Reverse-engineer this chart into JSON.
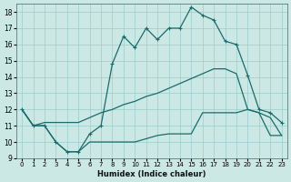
{
  "xlabel": "Humidex (Indice chaleur)",
  "bg_color": "#cce8e4",
  "grid_color": "#99cccc",
  "line_color": "#1a6b6b",
  "xlim": [
    -0.5,
    23.5
  ],
  "ylim": [
    9,
    18.5
  ],
  "yticks": [
    9,
    10,
    11,
    12,
    13,
    14,
    15,
    16,
    17,
    18
  ],
  "xticks": [
    0,
    1,
    2,
    3,
    4,
    5,
    6,
    7,
    8,
    9,
    10,
    11,
    12,
    13,
    14,
    15,
    16,
    17,
    18,
    19,
    20,
    21,
    22,
    23
  ],
  "line_main_x": [
    0,
    1,
    2,
    3,
    4,
    5,
    6,
    7,
    8,
    9,
    10,
    11,
    12,
    13,
    14,
    15,
    16,
    17,
    18,
    19,
    20,
    21,
    22,
    23
  ],
  "line_main_y": [
    12.0,
    11.0,
    11.0,
    10.0,
    9.4,
    9.4,
    10.5,
    11.0,
    14.8,
    16.5,
    15.8,
    17.0,
    16.3,
    17.0,
    17.0,
    18.3,
    17.8,
    17.5,
    16.2,
    16.0,
    14.1,
    12.0,
    11.8,
    11.2
  ],
  "line_upper_x": [
    0,
    1,
    2,
    3,
    4,
    5,
    6,
    7,
    8,
    9,
    10,
    11,
    12,
    13,
    14,
    15,
    16,
    17,
    18,
    19,
    20,
    21,
    22,
    23
  ],
  "line_upper_y": [
    12.0,
    11.0,
    11.2,
    11.2,
    11.2,
    11.2,
    11.5,
    11.8,
    12.0,
    12.3,
    12.5,
    12.8,
    13.0,
    13.3,
    13.6,
    13.9,
    14.2,
    14.5,
    14.5,
    14.2,
    12.0,
    11.8,
    11.5,
    10.4
  ],
  "line_lower_x": [
    0,
    1,
    2,
    3,
    4,
    5,
    6,
    7,
    8,
    9,
    10,
    11,
    12,
    13,
    14,
    15,
    16,
    17,
    18,
    19,
    20,
    21,
    22,
    23
  ],
  "line_lower_y": [
    12.0,
    11.0,
    11.0,
    10.0,
    9.4,
    9.4,
    10.0,
    10.0,
    10.0,
    10.0,
    10.0,
    10.2,
    10.4,
    10.5,
    10.5,
    10.5,
    11.8,
    11.8,
    11.8,
    11.8,
    12.0,
    11.8,
    10.4,
    10.4
  ]
}
